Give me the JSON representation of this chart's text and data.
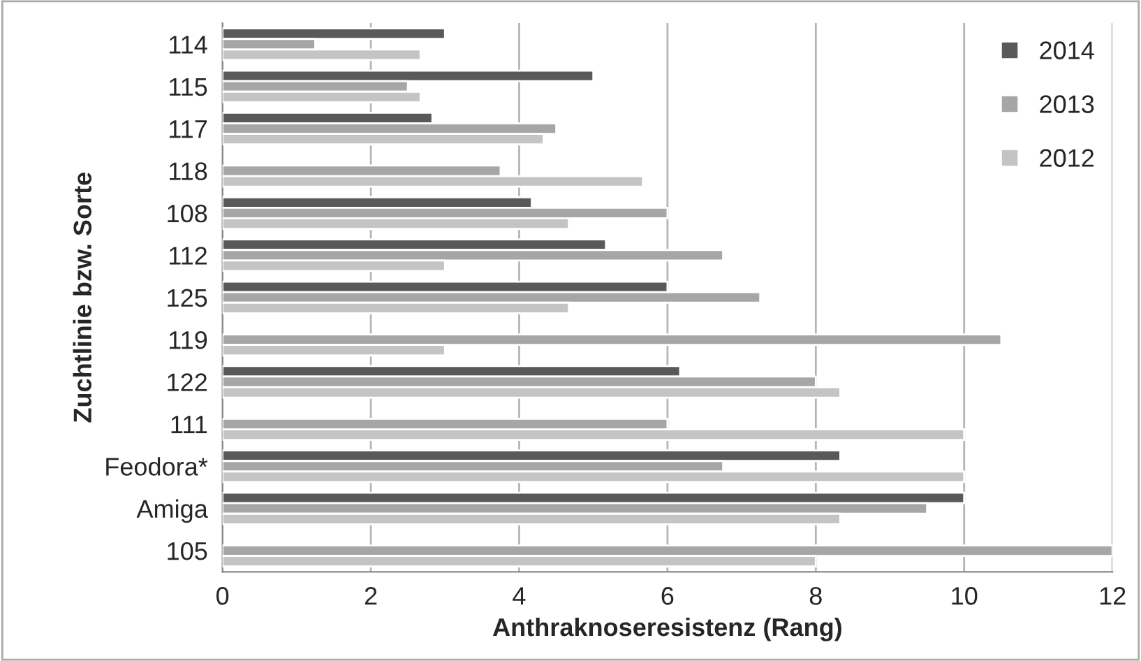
{
  "chart_data": {
    "type": "bar",
    "orientation": "horizontal",
    "xlabel": "Anthraknoseresistenz (Rang)",
    "ylabel": "Zuchtlinie bzw. Sorte",
    "categories": [
      "114",
      "115",
      "117",
      "118",
      "108",
      "112",
      "125",
      "119",
      "122",
      "111",
      "Feodora*",
      "Amiga",
      "105"
    ],
    "series": [
      {
        "name": "2014",
        "color": "#595959",
        "values": [
          3.0,
          5.0,
          2.83,
          null,
          4.17,
          5.17,
          6.0,
          null,
          6.17,
          null,
          8.33,
          10.0,
          null
        ]
      },
      {
        "name": "2013",
        "color": "#a6a6a6",
        "values": [
          1.25,
          2.5,
          4.5,
          3.75,
          6.0,
          6.75,
          7.25,
          10.5,
          8.0,
          6.0,
          6.75,
          9.5,
          12.0
        ]
      },
      {
        "name": "2012",
        "color": "#c4c4c4",
        "values": [
          2.67,
          2.67,
          4.33,
          5.67,
          4.67,
          3.0,
          4.67,
          3.0,
          8.33,
          10.0,
          10.0,
          8.33,
          8.0
        ]
      }
    ],
    "xlim": [
      0,
      12
    ],
    "xticks": [
      0,
      2,
      4,
      6,
      8,
      10,
      12
    ],
    "grid": "x",
    "legend": "top right"
  }
}
